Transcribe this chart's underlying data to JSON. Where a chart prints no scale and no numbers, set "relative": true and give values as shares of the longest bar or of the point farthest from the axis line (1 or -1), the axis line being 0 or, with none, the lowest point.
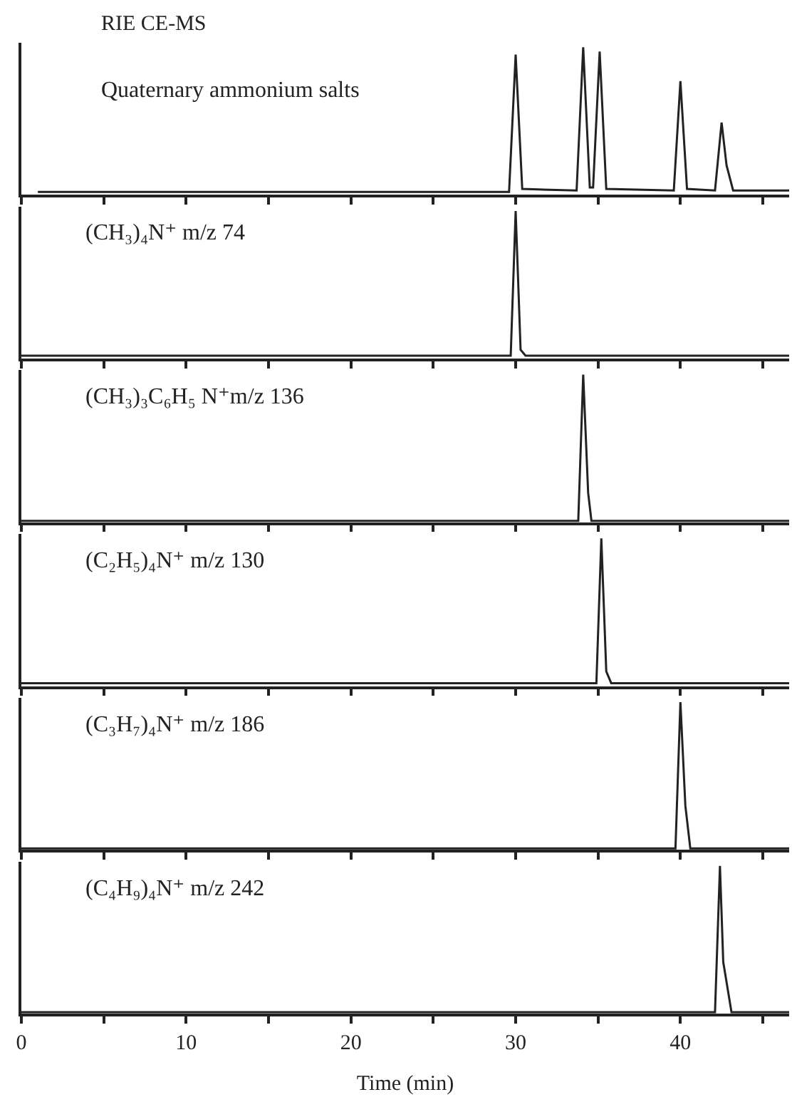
{
  "chart_data": [
    {
      "type": "line",
      "title": "RIE CE-MS",
      "subtitle": "Quaternary ammonium salts",
      "relative": true,
      "tick_labels": false,
      "xlim": [
        0,
        46.6
      ],
      "xticks": [
        0,
        {
          "value": 5,
          "label": null
        },
        10,
        {
          "value": 15,
          "label": null
        },
        20,
        {
          "value": 25,
          "label": null
        },
        30,
        {
          "value": 35,
          "label": null
        },
        40,
        {
          "value": 45,
          "label": null
        }
      ],
      "series": [
        {
          "color": "#222222",
          "x": [
            1,
            5,
            10,
            15,
            20,
            25,
            29.6,
            30.0,
            30.4,
            33.7,
            34.1,
            34.5,
            34.7,
            35.1,
            35.5,
            39.6,
            40.0,
            40.4,
            42.1,
            42.5,
            42.8,
            43.2,
            46.6
          ],
          "values": [
            0.02,
            0.02,
            0.02,
            0.02,
            0.02,
            0.02,
            0.02,
            0.95,
            0.04,
            0.03,
            1.0,
            0.05,
            0.05,
            0.97,
            0.04,
            0.03,
            0.77,
            0.04,
            0.03,
            0.49,
            0.2,
            0.03,
            0.03
          ]
        }
      ]
    },
    {
      "type": "line",
      "title": "(CH₃)₄N⁺ m/z 74",
      "relative": true,
      "tick_labels": false,
      "xlim": [
        0,
        46.6
      ],
      "xticks": [
        0,
        {
          "value": 5,
          "label": null
        },
        10,
        {
          "value": 15,
          "label": null
        },
        20,
        {
          "value": 25,
          "label": null
        },
        30,
        {
          "value": 35,
          "label": null
        },
        40,
        {
          "value": 45,
          "label": null
        }
      ],
      "series": [
        {
          "color": "#222222",
          "x": [
            0,
            10,
            20,
            29.7,
            30.0,
            30.3,
            30.6,
            40,
            46.6
          ],
          "values": [
            0.02,
            0.02,
            0.02,
            0.02,
            1.0,
            0.06,
            0.02,
            0.02,
            0.02
          ]
        }
      ]
    },
    {
      "type": "line",
      "title": "(CH₃)₃C₆H₅ N⁺m/z 136",
      "relative": true,
      "tick_labels": false,
      "xlim": [
        0,
        46.6
      ],
      "xticks": [
        0,
        {
          "value": 5,
          "label": null
        },
        10,
        {
          "value": 15,
          "label": null
        },
        20,
        {
          "value": 25,
          "label": null
        },
        30,
        {
          "value": 35,
          "label": null
        },
        40,
        {
          "value": 45,
          "label": null
        }
      ],
      "series": [
        {
          "color": "#222222",
          "x": [
            0,
            10,
            20,
            30,
            33.8,
            34.1,
            34.4,
            34.6,
            40,
            46.6
          ],
          "values": [
            0.01,
            0.01,
            0.01,
            0.01,
            0.01,
            1.0,
            0.2,
            0.01,
            0.01,
            0.01
          ]
        }
      ]
    },
    {
      "type": "line",
      "title": "(C₂H₅)₄N⁺ m/z 130",
      "relative": true,
      "tick_labels": false,
      "xlim": [
        0,
        46.6
      ],
      "xticks": [
        0,
        {
          "value": 5,
          "label": null
        },
        10,
        {
          "value": 15,
          "label": null
        },
        20,
        {
          "value": 25,
          "label": null
        },
        30,
        {
          "value": 35,
          "label": null
        },
        40,
        {
          "value": 45,
          "label": null
        }
      ],
      "series": [
        {
          "color": "#222222",
          "x": [
            0,
            10,
            20,
            30,
            34.9,
            35.2,
            35.5,
            35.8,
            40,
            46.6
          ],
          "values": [
            0.02,
            0.02,
            0.02,
            0.02,
            0.02,
            1.0,
            0.1,
            0.02,
            0.02,
            0.02
          ]
        }
      ]
    },
    {
      "type": "line",
      "title": "(C₃H₇)₄N⁺ m/z 186",
      "relative": true,
      "tick_labels": false,
      "xlim": [
        0,
        46.6
      ],
      "xticks": [
        0,
        {
          "value": 5,
          "label": null
        },
        10,
        {
          "value": 15,
          "label": null
        },
        20,
        {
          "value": 25,
          "label": null
        },
        30,
        {
          "value": 35,
          "label": null
        },
        40,
        {
          "value": 45,
          "label": null
        }
      ],
      "series": [
        {
          "color": "#222222",
          "x": [
            0,
            10,
            20,
            30,
            39.7,
            40.0,
            40.3,
            40.6,
            46.6
          ],
          "values": [
            0.01,
            0.01,
            0.01,
            0.01,
            0.01,
            1.0,
            0.3,
            0.01,
            0.01
          ]
        }
      ]
    },
    {
      "type": "line",
      "title": "(C₄H₉)₄N⁺ m/z 242",
      "xlabel": "Time (min)",
      "relative": true,
      "tick_labels": "x",
      "xlim": [
        0,
        46.6
      ],
      "xticks": [
        0,
        {
          "value": 5,
          "label": null
        },
        10,
        {
          "value": 15,
          "label": null
        },
        20,
        {
          "value": 25,
          "label": null
        },
        30,
        {
          "value": 35,
          "label": null
        },
        40,
        {
          "value": 45,
          "label": null
        }
      ],
      "series": [
        {
          "color": "#222222",
          "x": [
            0,
            10,
            20,
            30,
            42.1,
            42.4,
            42.6,
            43.1,
            46.6
          ],
          "values": [
            0.01,
            0.01,
            0.01,
            0.01,
            0.01,
            1.0,
            0.35,
            0.01,
            0.01
          ]
        }
      ]
    }
  ]
}
